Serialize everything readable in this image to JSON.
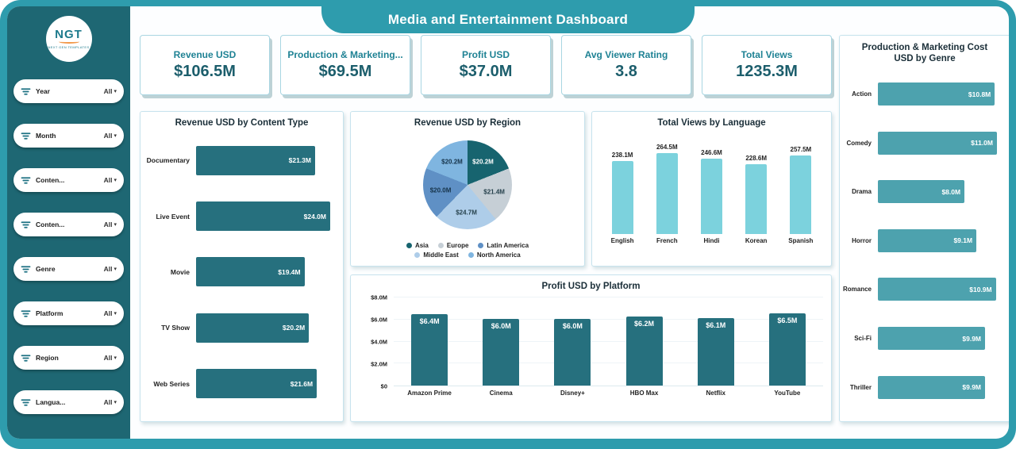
{
  "title": "Media and Entertainment Dashboard",
  "logo": {
    "text": "NGT",
    "caption": "NEXT GEN TEMPLATES"
  },
  "colors": {
    "frame_teal": "#2E9CAD",
    "sidebar_teal": "#1E6773",
    "bar_dark_teal": "#26707E",
    "bar_cyan": "#7CD2DD",
    "bar_medium_teal": "#4DA2AE",
    "kpi_label_teal": "#1F8294",
    "kpi_value_teal": "#1C5E6C"
  },
  "sidebar": {
    "filters": [
      {
        "label": "Year",
        "value": "All"
      },
      {
        "label": "Month",
        "value": "All"
      },
      {
        "label": "Conten...",
        "value": "All"
      },
      {
        "label": "Conten...",
        "value": "All"
      },
      {
        "label": "Genre",
        "value": "All"
      },
      {
        "label": "Platform",
        "value": "All"
      },
      {
        "label": "Region",
        "value": "All"
      },
      {
        "label": "Langua...",
        "value": "All"
      }
    ]
  },
  "kpis": [
    {
      "label": "Revenue USD",
      "value": "$106.5M"
    },
    {
      "label": "Production & Marketing...",
      "value": "$69.5M"
    },
    {
      "label": "Profit USD",
      "value": "$37.0M"
    },
    {
      "label": "Avg Viewer Rating",
      "value": "3.8"
    },
    {
      "label": "Total Views",
      "value": "1235.3M"
    }
  ],
  "chart_data": [
    {
      "id": "revenue_by_content_type",
      "type": "bar",
      "orientation": "horizontal",
      "title": "Revenue USD by Content Type",
      "categories": [
        "Documentary",
        "Live Event",
        "Movie",
        "TV Show",
        "Web Series"
      ],
      "values": [
        21.3,
        24.0,
        19.4,
        20.2,
        21.6
      ],
      "labels": [
        "$21.3M",
        "$24.0M",
        "$19.4M",
        "$20.2M",
        "$21.6M"
      ],
      "xmax": 24.0,
      "color": "#26707E",
      "value_label_color": "#FFFFFF"
    },
    {
      "id": "revenue_by_region",
      "type": "pie",
      "title": "Revenue USD by Region",
      "slices": [
        {
          "name": "Asia",
          "value": 20.2,
          "label": "$20.2M",
          "color": "#17646F",
          "label_color": "#FFFFFF"
        },
        {
          "name": "Europe",
          "value": 21.4,
          "label": "$21.4M",
          "color": "#C6CFD6",
          "label_color": "#27424D"
        },
        {
          "name": "Middle East",
          "value": 24.7,
          "label": "$24.7M",
          "color": "#AECDE9",
          "label_color": "#27424D"
        },
        {
          "name": "Latin America",
          "value": 20.0,
          "label": "$20.0M",
          "color": "#5F90C5",
          "label_color": "#16334A"
        },
        {
          "name": "North America",
          "value": 20.2,
          "label": "$20.2M",
          "color": "#7FB5E0",
          "label_color": "#16334A"
        }
      ],
      "legend": [
        "Asia",
        "Europe",
        "Latin America",
        "Middle East",
        "North America"
      ],
      "legend_position": "bottom"
    },
    {
      "id": "total_views_by_language",
      "type": "bar",
      "orientation": "vertical",
      "title": "Total Views by Language",
      "categories": [
        "English",
        "French",
        "Hindi",
        "Korean",
        "Spanish"
      ],
      "values": [
        238.1,
        264.5,
        246.6,
        228.6,
        257.5
      ],
      "labels": [
        "238.1M",
        "264.5M",
        "246.6M",
        "228.6M",
        "257.5M"
      ],
      "ymax": 264.5,
      "color": "#7CD2DD",
      "value_label_pos": "above",
      "value_label_color": "#222222"
    },
    {
      "id": "profit_by_platform",
      "type": "bar",
      "orientation": "vertical",
      "title": "Profit USD by Platform",
      "categories": [
        "Amazon Prime",
        "Cinema",
        "Disney+",
        "HBO Max",
        "Netflix",
        "YouTube"
      ],
      "values": [
        6.4,
        6.0,
        6.0,
        6.2,
        6.1,
        6.5
      ],
      "labels": [
        "$6.4M",
        "$6.0M",
        "$6.0M",
        "$6.2M",
        "$6.1M",
        "$6.5M"
      ],
      "ymax": 8,
      "yticks": [
        "$0",
        "$2.0M",
        "$4.0M",
        "$6.0M",
        "$8.0M"
      ],
      "color": "#26707E",
      "value_label_pos": "inside",
      "value_label_color": "#FFFFFF"
    },
    {
      "id": "cost_by_genre",
      "type": "bar",
      "orientation": "horizontal",
      "title": "Production & Marketing Cost USD by Genre",
      "categories": [
        "Action",
        "Comedy",
        "Drama",
        "Horror",
        "Romance",
        "Sci-Fi",
        "Thriller"
      ],
      "values": [
        10.8,
        11.0,
        8.0,
        9.1,
        10.9,
        9.9,
        9.9
      ],
      "labels": [
        "$10.8M",
        "$11.0M",
        "$8.0M",
        "$9.1M",
        "$10.9M",
        "$9.9M",
        "$9.9M"
      ],
      "xmax": 11.0,
      "color": "#4DA2AE",
      "value_label_color": "#FFFFFF"
    }
  ]
}
